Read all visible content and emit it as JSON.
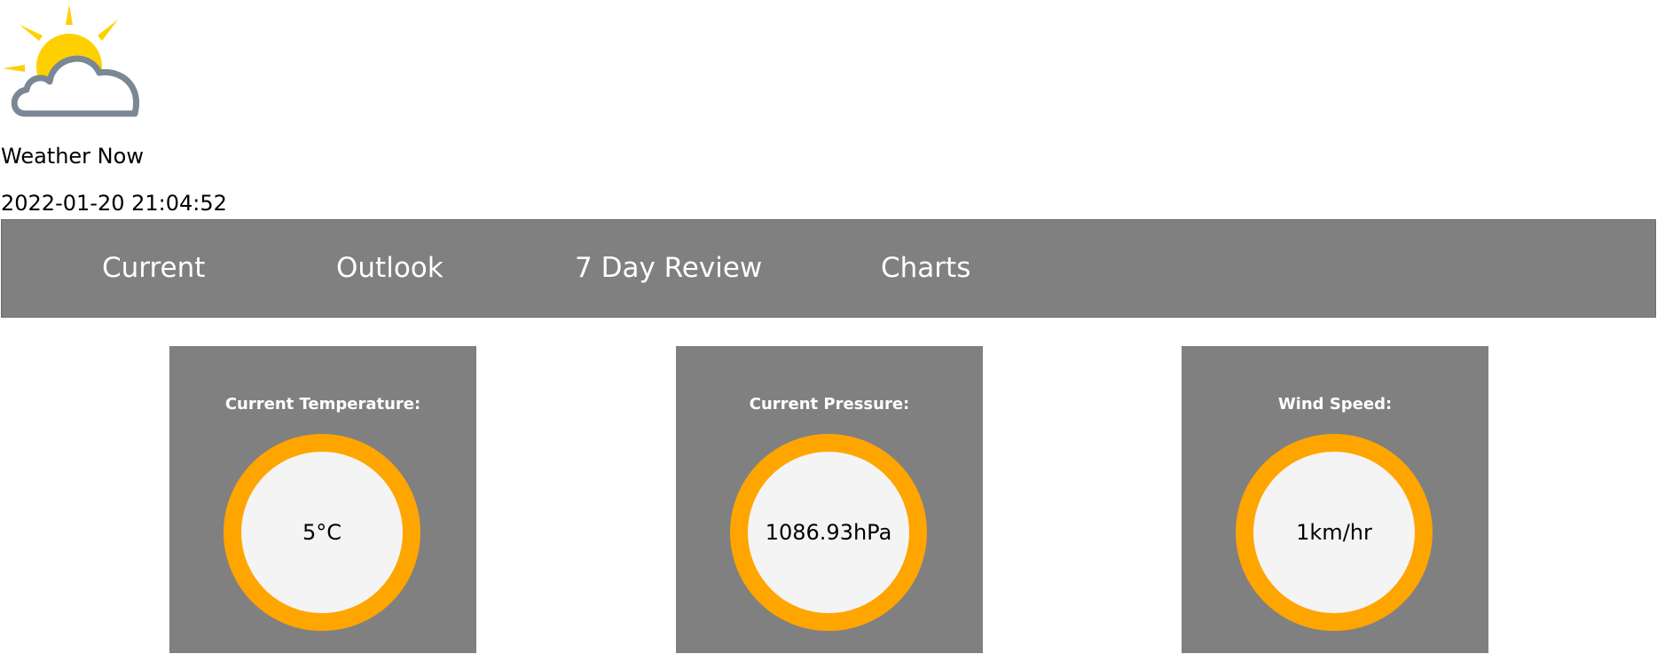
{
  "header": {
    "logo_icon": "partly-cloudy-icon",
    "title": "Weather Now",
    "timestamp": "2022-01-20 21:04:52"
  },
  "nav": {
    "items": [
      {
        "label": "Current"
      },
      {
        "label": "Outlook"
      },
      {
        "label": "7 Day Review"
      },
      {
        "label": "Charts"
      }
    ]
  },
  "cards": [
    {
      "label": "Current Temperature:",
      "value": "5°C"
    },
    {
      "label": "Current Pressure:",
      "value": "1086.93hPa"
    },
    {
      "label": "Wind Speed:",
      "value": "1km/hr"
    }
  ],
  "colors": {
    "nav_bg": "#808080",
    "card_bg": "#808080",
    "gauge_ring": "#FFA500",
    "gauge_face": "#F4F4F4",
    "sun": "#FFD000",
    "cloud_outline": "#7B8794"
  }
}
